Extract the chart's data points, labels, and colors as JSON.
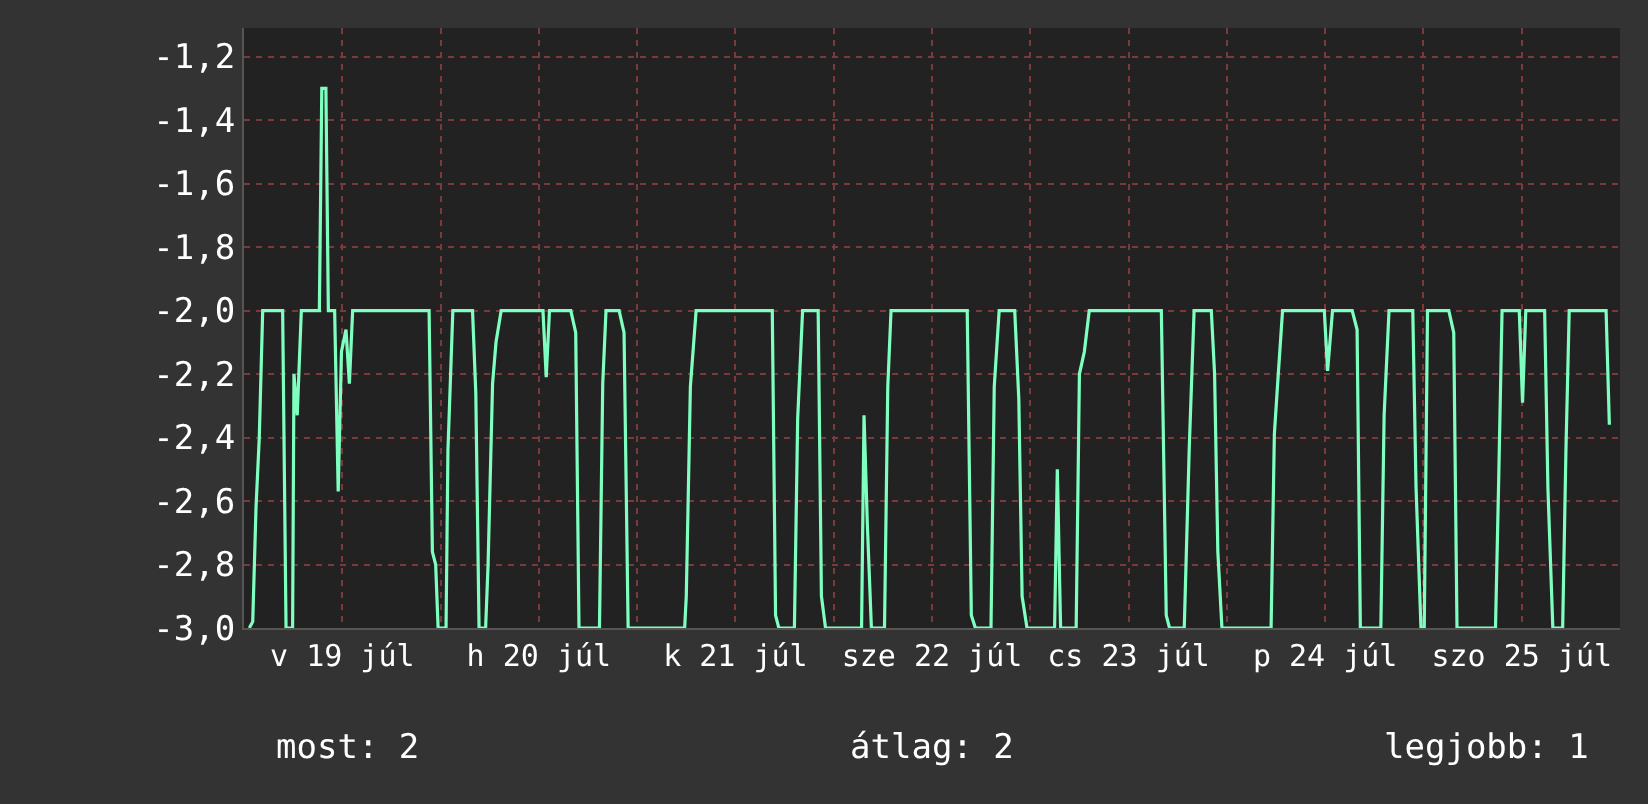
{
  "chart_data": {
    "type": "line",
    "x": [
      "--07-19T00:39",
      "--07-19T01:04",
      "--07-19T01:28",
      "--07-19T01:52",
      "--07-19T02:17",
      "--07-19T04:43",
      "--07-19T05:08",
      "--07-19T05:56",
      "--07-19T06:06",
      "--07-19T06:30",
      "--07-19T07:00",
      "--07-19T09:12",
      "--07-19T09:30",
      "--07-19T10:00",
      "--07-19T10:18",
      "--07-19T11:04",
      "--07-19T11:30",
      "--07-19T11:54",
      "--07-19T12:27",
      "--07-19T12:52",
      "--07-19T13:16",
      "--07-19T22:36",
      "--07-19T23:00",
      "--07-19T23:24",
      "--07-19T23:42",
      "--07-20T00:40",
      "--07-20T00:54",
      "--07-20T01:30",
      "--07-20T03:54",
      "--07-20T04:18",
      "--07-20T04:42",
      "--07-20T05:30",
      "--07-20T05:48",
      "--07-20T06:21",
      "--07-20T06:46",
      "--07-20T07:24",
      "--07-20T12:30",
      "--07-20T12:54",
      "--07-20T13:18",
      "--07-20T15:54",
      "--07-20T16:30",
      "--07-20T16:54",
      "--07-20T19:24",
      "--07-20T19:48",
      "--07-20T20:12",
      "--07-20T21:48",
      "--07-20T22:24",
      "--07-20T22:54",
      "--07-21T05:48",
      "--07-21T06:00",
      "--07-21T06:30",
      "--07-21T07:12",
      "--07-21T16:30",
      "--07-21T16:54",
      "--07-21T17:18",
      "--07-21T19:12",
      "--07-21T19:36",
      "--07-21T20:12",
      "--07-21T22:06",
      "--07-21T22:30",
      "--07-21T23:00",
      "--07-22T03:24",
      "--07-22T03:42",
      "--07-22T04:06",
      "--07-22T04:36",
      "--07-22T06:12",
      "--07-22T06:36",
      "--07-22T07:00",
      "--07-22T16:18",
      "--07-22T16:48",
      "--07-22T17:18",
      "--07-22T19:12",
      "--07-22T19:36",
      "--07-22T20:12",
      "--07-22T22:06",
      "--07-22T22:36",
      "--07-22T23:00",
      "--07-22T23:36",
      "--07-23T02:58",
      "--07-23T03:18",
      "--07-23T03:42",
      "--07-23T05:36",
      "--07-23T06:00",
      "--07-23T06:36",
      "--07-23T07:12",
      "--07-23T16:00",
      "--07-23T16:36",
      "--07-23T17:00",
      "--07-23T18:48",
      "--07-23T19:24",
      "--07-23T20:00",
      "--07-23T22:06",
      "--07-23T22:30",
      "--07-23T22:54",
      "--07-23T23:24",
      "--07-24T05:24",
      "--07-24T05:48",
      "--07-24T06:12",
      "--07-24T06:48",
      "--07-24T11:54",
      "--07-24T12:18",
      "--07-24T12:54",
      "--07-24T15:18",
      "--07-24T15:54",
      "--07-24T16:18",
      "--07-24T18:48",
      "--07-24T19:12",
      "--07-24T19:48",
      "--07-24T22:42",
      "--07-24T23:06",
      "--07-24T23:42",
      "--07-25T00:06",
      "--07-25T00:30",
      "--07-25T03:06",
      "--07-25T03:42",
      "--07-25T04:06",
      "--07-25T08:48",
      "--07-25T09:12",
      "--07-25T09:36",
      "--07-25T11:42",
      "--07-25T12:06",
      "--07-25T12:30",
      "--07-25T14:48",
      "--07-25T15:12",
      "--07-25T15:48",
      "--07-25T17:00",
      "--07-25T17:24",
      "--07-25T17:48",
      "--07-25T22:18",
      "--07-25T22:42"
    ],
    "series": [
      {
        "color": "#7fffbf",
        "values": [
          -3,
          -2.98,
          -2.62,
          -2.4,
          -2,
          -2,
          -3,
          -3,
          -2.2,
          -2.33,
          -2,
          -2,
          -1.3,
          -1.3,
          -2,
          -2,
          -2.57,
          -2.13,
          -2.06,
          -2.23,
          -2,
          -2,
          -2.76,
          -2.8,
          -3,
          -3,
          -2.44,
          -2,
          -2,
          -2.26,
          -3,
          -3,
          -2.8,
          -2.23,
          -2.1,
          -2,
          -2,
          -2.21,
          -2,
          -2,
          -2.07,
          -3,
          -3,
          -2.23,
          -2,
          -2,
          -2.07,
          -3,
          -3,
          -2.9,
          -2.24,
          -2,
          -2,
          -2.96,
          -3,
          -3,
          -2.34,
          -2,
          -2,
          -2.9,
          -3,
          -3,
          -2.33,
          -2.67,
          -3,
          -3,
          -2.24,
          -2,
          -2,
          -2.96,
          -3,
          -3,
          -2.24,
          -2,
          -2,
          -2.28,
          -2.9,
          -3,
          -3,
          -2.5,
          -3,
          -3,
          -2.2,
          -2.13,
          -2,
          -2,
          -2.96,
          -3,
          -3,
          -2.44,
          -2,
          -2,
          -2.2,
          -2.76,
          -3,
          -3,
          -2.39,
          -2.23,
          -2,
          -2,
          -2.19,
          -2,
          -2,
          -2.06,
          -3,
          -3,
          -2.33,
          -2,
          -2,
          -2.56,
          -3,
          -3,
          -2,
          -2,
          -2.07,
          -3,
          -3,
          -2.52,
          -2,
          -2,
          -2.29,
          -2,
          -2,
          -2.56,
          -3,
          -3,
          -2.44,
          -2,
          -2,
          -2.36
        ]
      }
    ],
    "xlim": [
      "--07-19T00:00",
      "--07-26T00:00"
    ],
    "xticks": [
      {
        "value": "--07-19T00:00",
        "label": null
      },
      {
        "value": "--07-19T12:00",
        "label": "v 19 júl"
      },
      {
        "value": "--07-20T00:00",
        "label": null
      },
      {
        "value": "--07-20T12:00",
        "label": "h 20 júl"
      },
      {
        "value": "--07-21T00:00",
        "label": null
      },
      {
        "value": "--07-21T12:00",
        "label": "k 21 júl"
      },
      {
        "value": "--07-22T00:00",
        "label": null
      },
      {
        "value": "--07-22T12:00",
        "label": "sze 22 júl"
      },
      {
        "value": "--07-23T00:00",
        "label": null
      },
      {
        "value": "--07-23T12:00",
        "label": "cs 23 júl"
      },
      {
        "value": "--07-24T00:00",
        "label": null
      },
      {
        "value": "--07-24T12:00",
        "label": "p 24 júl"
      },
      {
        "value": "--07-25T00:00",
        "label": null
      },
      {
        "value": "--07-25T12:00",
        "label": "szo 25 júl"
      },
      {
        "value": "--07-26T00:00",
        "label": null
      }
    ],
    "ylim": [
      -3,
      -1.11
    ],
    "yticks": [
      {
        "value": -3,
        "label": "-3,0"
      },
      {
        "value": -2.8,
        "label": "-2,8"
      },
      {
        "value": -2.6,
        "label": "-2,6"
      },
      {
        "value": -2.4,
        "label": "-2,4"
      },
      {
        "value": -2.2,
        "label": "-2,2"
      },
      {
        "value": -2,
        "label": "-2,0"
      },
      {
        "value": -1.8,
        "label": "-1,8"
      },
      {
        "value": -1.6,
        "label": "-1,6"
      },
      {
        "value": -1.4,
        "label": "-1,4"
      },
      {
        "value": -1.2,
        "label": "-1,2"
      }
    ],
    "grid": true,
    "marker": "none",
    "line_style": "solid",
    "annotations": [
      "most: 2",
      "átlag: 2",
      "legjobb: 1"
    ]
  }
}
